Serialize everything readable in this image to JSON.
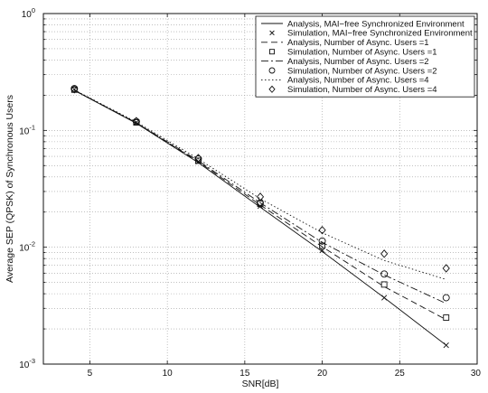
{
  "chart_data": {
    "type": "line",
    "xlabel": "SNR[dB]",
    "ylabel": "Average SEP (QPSK) of Synchronous Users",
    "xlim": [
      2,
      30
    ],
    "ylim": [
      0.001,
      1
    ],
    "yscale": "log",
    "grid": true,
    "legend_position": "top-right",
    "x_ticks": [
      5,
      10,
      15,
      20,
      25,
      30
    ],
    "x_tick_labels": [
      "5",
      "10",
      "15",
      "20",
      "25",
      "30"
    ],
    "y_ticks": [
      0.001,
      0.01,
      0.1,
      1
    ],
    "y_tick_labels": [
      {
        "base": "10",
        "exp": "-3"
      },
      {
        "base": "10",
        "exp": "-2"
      },
      {
        "base": "10",
        "exp": "-1"
      },
      {
        "base": "10",
        "exp": "0"
      }
    ],
    "series": [
      {
        "name": "Analysis, MAI−free Synchronized Environment",
        "kind": "line",
        "dash": "solid",
        "x": [
          4,
          8,
          12,
          16,
          20,
          24,
          28
        ],
        "y": [
          0.22,
          0.115,
          0.053,
          0.022,
          0.0092,
          0.0037,
          0.00145
        ]
      },
      {
        "name": "Simulation, MAI−free Synchronized Environment",
        "kind": "marker",
        "marker": "x",
        "x": [
          4,
          8,
          12,
          16,
          20,
          24,
          28
        ],
        "y": [
          0.225,
          0.117,
          0.054,
          0.0225,
          0.0094,
          0.0037,
          0.00145
        ]
      },
      {
        "name": "Analysis, Number of Async. Users =1",
        "kind": "line",
        "dash": "dashed",
        "x": [
          4,
          8,
          12,
          16,
          20,
          24,
          28
        ],
        "y": [
          0.22,
          0.116,
          0.054,
          0.023,
          0.0101,
          0.0046,
          0.0024
        ]
      },
      {
        "name": "Simulation, Number of Async. Users =1",
        "kind": "marker",
        "marker": "square",
        "x": [
          4,
          8,
          12,
          16,
          20,
          24,
          28
        ],
        "y": [
          0.223,
          0.117,
          0.055,
          0.0235,
          0.0103,
          0.0048,
          0.0025
        ]
      },
      {
        "name": "Analysis, Number of Async. Users =2",
        "kind": "line",
        "dash": "dashdot",
        "x": [
          4,
          8,
          12,
          16,
          20,
          24,
          28
        ],
        "y": [
          0.221,
          0.116,
          0.055,
          0.024,
          0.011,
          0.0058,
          0.0033
        ]
      },
      {
        "name": "Simulation, Number of Async. Users =2",
        "kind": "marker",
        "marker": "circle",
        "x": [
          4,
          8,
          12,
          16,
          20,
          24,
          28
        ],
        "y": [
          0.228,
          0.119,
          0.057,
          0.024,
          0.0113,
          0.0059,
          0.0037
        ]
      },
      {
        "name": "Analysis, Number of Async. Users =4",
        "kind": "line",
        "dash": "dotted",
        "x": [
          4,
          8,
          12,
          16,
          20,
          24,
          28
        ],
        "y": [
          0.222,
          0.118,
          0.057,
          0.026,
          0.0133,
          0.0077,
          0.0053
        ]
      },
      {
        "name": "Simulation, Number of Async. Users =4",
        "kind": "marker",
        "marker": "diamond",
        "x": [
          4,
          8,
          12,
          16,
          20,
          24,
          28
        ],
        "y": [
          0.225,
          0.12,
          0.058,
          0.027,
          0.014,
          0.0088,
          0.0066
        ]
      }
    ]
  }
}
